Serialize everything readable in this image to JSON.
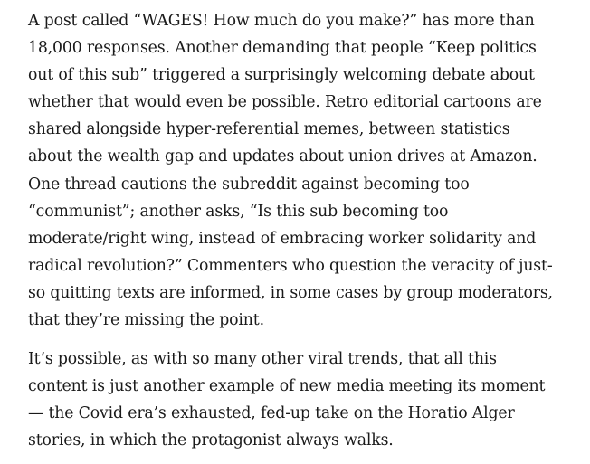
{
  "article": {
    "paragraphs": [
      {
        "lines": [
          "A post called “WAGES! How much do you make?” has more than",
          "18,000 responses. Another demanding that people “Keep politics",
          "out of this sub” triggered a surprisingly welcoming debate about",
          "whether that would even be possible. Retro editorial cartoons are",
          "shared alongside hyper-referential memes, between statistics",
          "about the wealth gap and updates about union drives at Amazon.",
          "One thread cautions the subreddit against becoming too",
          "“communist”; another asks, “Is this sub becoming too",
          "moderate/right wing, instead of embracing worker solidarity and",
          "radical revolution?” Commenters who question the veracity of just-",
          "so quitting texts are informed, in some cases by group moderators,",
          "that they’re missing the point."
        ]
      },
      {
        "lines": [
          "It’s possible, as with so many other viral trends, that all this",
          "content is just another example of new media meeting its moment",
          "— the Covid era’s exhausted, fed-up take on the Horatio Alger",
          "stories, in which the protagonist always walks."
        ]
      }
    ]
  }
}
